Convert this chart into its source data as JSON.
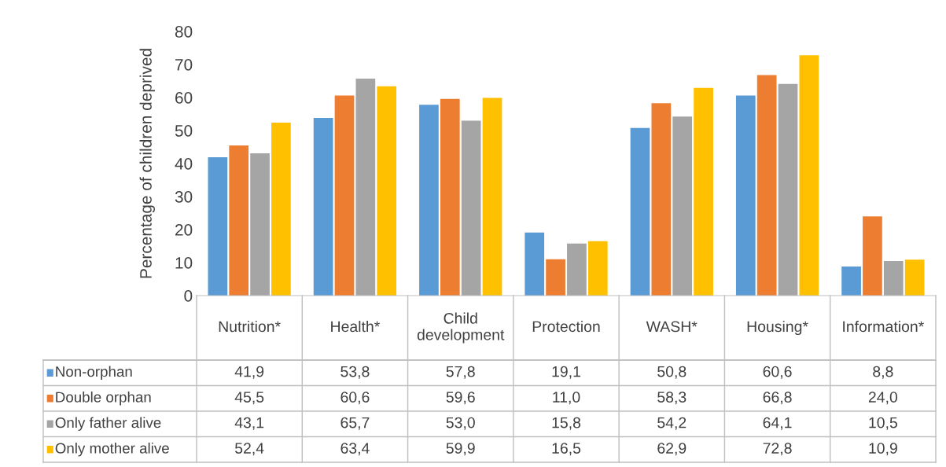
{
  "chart_data": {
    "type": "bar",
    "ylabel": "Percentage of children deprived",
    "categories": [
      "Nutrition*",
      "Health*",
      "Child development",
      "Protection",
      "WASH*",
      "Housing*",
      "Information*"
    ],
    "series": [
      {
        "name": "Non-orphan",
        "color": "#5b9bd5",
        "values": [
          41.9,
          53.8,
          57.8,
          19.1,
          50.8,
          60.6,
          8.8
        ],
        "value_labels": [
          "41,9",
          "53,8",
          "57,8",
          "19,1",
          "50,8",
          "60,6",
          "8,8"
        ]
      },
      {
        "name": "Double orphan",
        "color": "#ed7d31",
        "values": [
          45.5,
          60.6,
          59.6,
          11.0,
          58.3,
          66.8,
          24.0
        ],
        "value_labels": [
          "45,5",
          "60,6",
          "59,6",
          "11,0",
          "58,3",
          "66,8",
          "24,0"
        ]
      },
      {
        "name": "Only father alive",
        "color": "#a5a5a5",
        "values": [
          43.1,
          65.7,
          53.0,
          15.8,
          54.2,
          64.1,
          10.5
        ],
        "value_labels": [
          "43,1",
          "65,7",
          "53,0",
          "15,8",
          "54,2",
          "64,1",
          "10,5"
        ]
      },
      {
        "name": "Only mother alive",
        "color": "#ffc000",
        "values": [
          52.4,
          63.4,
          59.9,
          16.5,
          62.9,
          72.8,
          10.9
        ],
        "value_labels": [
          "52,4",
          "63,4",
          "59,9",
          "16,5",
          "62,9",
          "72,8",
          "10,9"
        ]
      }
    ],
    "ylim": [
      0,
      80
    ],
    "yticks": [
      0,
      10,
      20,
      30,
      40,
      50,
      60,
      70,
      80
    ],
    "grid": false,
    "legend": "bottom"
  }
}
